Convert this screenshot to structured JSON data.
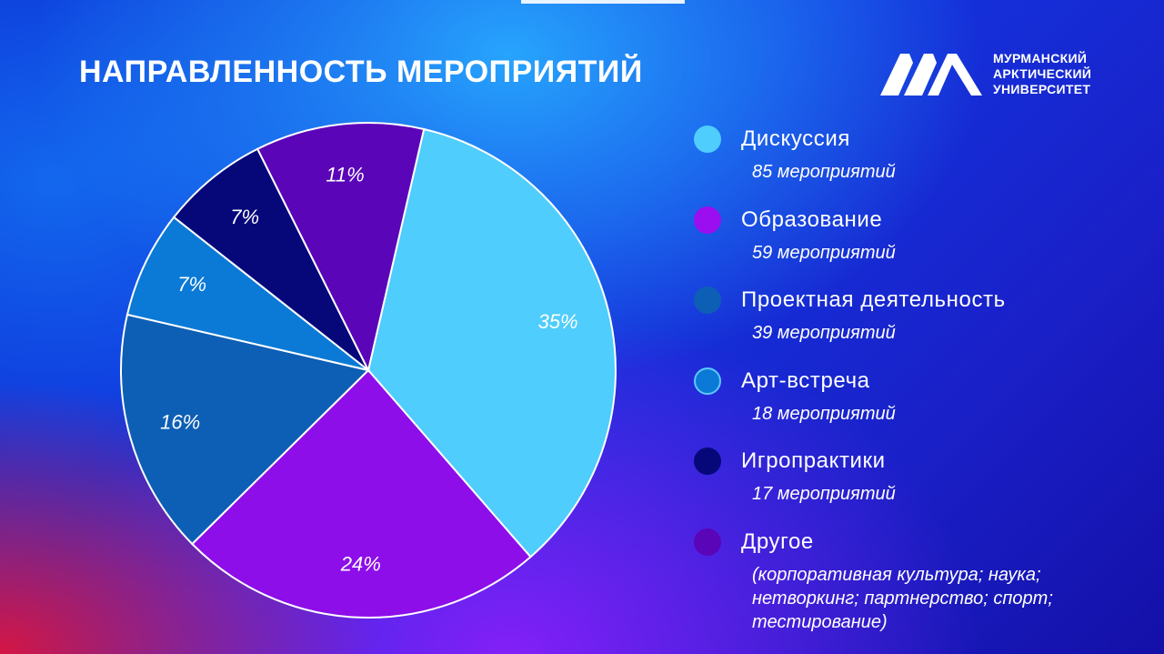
{
  "title": "НАПРАВЛЕННОСТЬ МЕРОПРИЯТИЙ",
  "logo": {
    "lines": [
      "МУРМАНСКИЙ",
      "АРКТИЧЕСКИЙ",
      "УНИВЕРСИТЕТ"
    ],
    "icon": "mau-logo-icon"
  },
  "chart_data": {
    "type": "pie",
    "title": "НАПРАВЛЕННОСТЬ МЕРОПРИЯТИЙ",
    "start_angle_deg": 13,
    "direction": "clockwise",
    "slices": [
      {
        "name": "Дискуссия",
        "value": 35,
        "label": "35%",
        "color": "#4fcdfc"
      },
      {
        "name": "Образование",
        "value": 24,
        "label": "24%",
        "color": "#8d0ee8"
      },
      {
        "name": "Проектная деятельность",
        "value": 16,
        "label": "16%",
        "color": "#0d5fb5"
      },
      {
        "name": "Арт-встреча",
        "value": 7,
        "label": "7%",
        "color": "#0a7ad6"
      },
      {
        "name": "Игропрактики",
        "value": 7,
        "label": "7%",
        "color": "#06087a"
      },
      {
        "name": "Другое",
        "value": 11,
        "label": "11%",
        "color": "#5a05b8"
      }
    ]
  },
  "legend": [
    {
      "label": "Дискуссия",
      "sub": "85 мероприятий",
      "color": "#4fcdfc"
    },
    {
      "label": "Образование",
      "sub": "59 мероприятий",
      "color": "#9a0ef0"
    },
    {
      "label": "Проектная деятельность",
      "sub": "39 мероприятий",
      "color": "#0d5fb5"
    },
    {
      "label": "Арт-встреча",
      "sub": "18 мероприятий",
      "color": "#0a7ad6"
    },
    {
      "label": "Игропрактики",
      "sub": "17 мероприятий",
      "color": "#06087a"
    },
    {
      "label": "Другое",
      "sub": "(корпоративная культура; наука; нетворкинг; партнерство; спорт; тестирование)",
      "color": "#5a05b8"
    }
  ]
}
